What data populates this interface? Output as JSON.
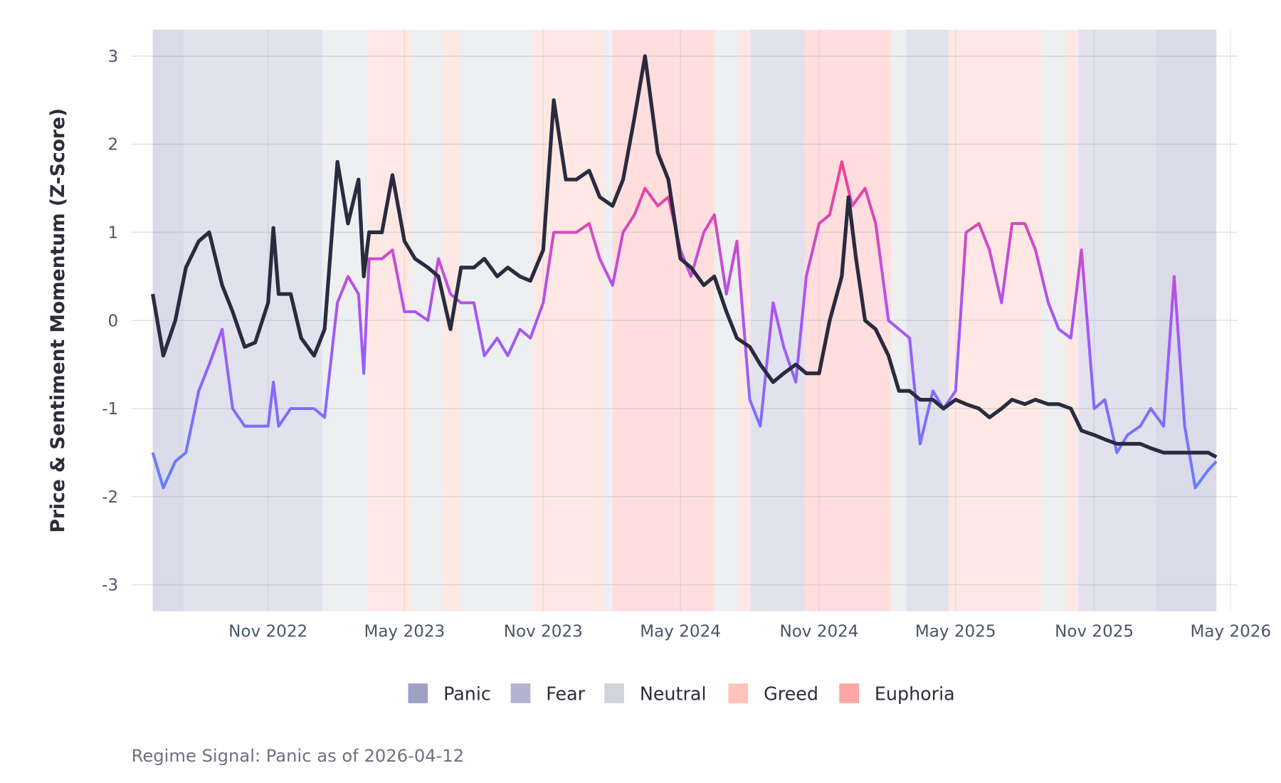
{
  "chart_data": {
    "type": "line",
    "ylabel": "Price & Sentiment Momentum (Z-Score)",
    "ylim": [
      -3.3,
      3.3
    ],
    "xlim": [
      "2022-06-01",
      "2026-05-10"
    ],
    "y_ticks": [
      "3",
      "2",
      "1",
      "0",
      "-1",
      "-2",
      "-3"
    ],
    "y_tick_values": [
      3,
      2,
      1,
      0,
      -1,
      -2,
      -3
    ],
    "x_ticks": [
      {
        "label": "Nov 2022",
        "date": "2022-11-01"
      },
      {
        "label": "May 2023",
        "date": "2023-05-01"
      },
      {
        "label": "Nov 2023",
        "date": "2023-11-01"
      },
      {
        "label": "May 2024",
        "date": "2024-05-01"
      },
      {
        "label": "Nov 2024",
        "date": "2024-11-01"
      },
      {
        "label": "May 2025",
        "date": "2025-05-01"
      },
      {
        "label": "Nov 2025",
        "date": "2025-11-01"
      },
      {
        "label": "May 2026",
        "date": "2026-05-01"
      }
    ],
    "grid": true,
    "legend_position": "bottom",
    "legend": [
      {
        "label": "Panic",
        "color": "#9f9fc6"
      },
      {
        "label": "Fear",
        "color": "#b3b3d1"
      },
      {
        "label": "Neutral",
        "color": "#d1d5db"
      },
      {
        "label": "Greed",
        "color": "#fec3b9"
      },
      {
        "label": "Euphoria",
        "color": "#fea7a5"
      }
    ],
    "regimes": [
      {
        "start": "2022-06-01",
        "end": "2022-07-12",
        "regime": "Panic"
      },
      {
        "start": "2022-07-12",
        "end": "2022-08-17",
        "regime": "Fear"
      },
      {
        "start": "2022-08-17",
        "end": "2023-01-12",
        "regime": "Fear"
      },
      {
        "start": "2023-01-12",
        "end": "2023-03-13",
        "regime": "Neutral"
      },
      {
        "start": "2023-03-13",
        "end": "2023-05-09",
        "regime": "Greed"
      },
      {
        "start": "2023-05-09",
        "end": "2023-06-21",
        "regime": "Neutral"
      },
      {
        "start": "2023-06-21",
        "end": "2023-07-13",
        "regime": "Greed"
      },
      {
        "start": "2023-07-13",
        "end": "2023-10-20",
        "regime": "Neutral"
      },
      {
        "start": "2023-10-20",
        "end": "2024-01-20",
        "regime": "Greed"
      },
      {
        "start": "2024-01-20",
        "end": "2024-02-01",
        "regime": "Neutral"
      },
      {
        "start": "2024-02-01",
        "end": "2024-06-15",
        "regime": "Euphoria"
      },
      {
        "start": "2024-06-15",
        "end": "2024-07-17",
        "regime": "Neutral"
      },
      {
        "start": "2024-07-17",
        "end": "2024-08-02",
        "regime": "Greed"
      },
      {
        "start": "2024-08-02",
        "end": "2024-10-13",
        "regime": "Fear"
      },
      {
        "start": "2024-10-13",
        "end": "2025-02-04",
        "regime": "Euphoria"
      },
      {
        "start": "2025-02-04",
        "end": "2025-02-25",
        "regime": "Neutral"
      },
      {
        "start": "2025-02-25",
        "end": "2025-04-22",
        "regime": "Fear"
      },
      {
        "start": "2025-04-22",
        "end": "2025-08-23",
        "regime": "Greed"
      },
      {
        "start": "2025-08-23",
        "end": "2025-09-24",
        "regime": "Neutral"
      },
      {
        "start": "2025-09-24",
        "end": "2025-10-11",
        "regime": "Greed"
      },
      {
        "start": "2025-10-11",
        "end": "2026-01-22",
        "regime": "Fear"
      },
      {
        "start": "2026-01-22",
        "end": "2026-04-12",
        "regime": "Panic"
      }
    ],
    "series": [
      {
        "color": "#292b3e",
        "points": [
          [
            "2022-06-01",
            0.3
          ],
          [
            "2022-06-15",
            -0.4
          ],
          [
            "2022-07-01",
            0.0
          ],
          [
            "2022-07-15",
            0.6
          ],
          [
            "2022-08-01",
            0.9
          ],
          [
            "2022-08-15",
            1.0
          ],
          [
            "2022-09-01",
            0.4
          ],
          [
            "2022-09-15",
            0.1
          ],
          [
            "2022-10-01",
            -0.3
          ],
          [
            "2022-10-15",
            -0.25
          ],
          [
            "2022-11-01",
            0.2
          ],
          [
            "2022-11-08",
            1.05
          ],
          [
            "2022-11-15",
            0.3
          ],
          [
            "2022-12-01",
            0.3
          ],
          [
            "2022-12-15",
            -0.2
          ],
          [
            "2023-01-01",
            -0.4
          ],
          [
            "2023-01-15",
            -0.1
          ],
          [
            "2023-02-01",
            1.8
          ],
          [
            "2023-02-15",
            1.1
          ],
          [
            "2023-03-01",
            1.6
          ],
          [
            "2023-03-08",
            0.5
          ],
          [
            "2023-03-15",
            1.0
          ],
          [
            "2023-04-01",
            1.0
          ],
          [
            "2023-04-15",
            1.65
          ],
          [
            "2023-05-01",
            0.9
          ],
          [
            "2023-05-15",
            0.7
          ],
          [
            "2023-06-01",
            0.6
          ],
          [
            "2023-06-15",
            0.5
          ],
          [
            "2023-07-01",
            -0.1
          ],
          [
            "2023-07-15",
            0.6
          ],
          [
            "2023-08-01",
            0.6
          ],
          [
            "2023-08-15",
            0.7
          ],
          [
            "2023-09-01",
            0.5
          ],
          [
            "2023-09-15",
            0.6
          ],
          [
            "2023-10-01",
            0.5
          ],
          [
            "2023-10-15",
            0.45
          ],
          [
            "2023-11-01",
            0.8
          ],
          [
            "2023-11-15",
            2.5
          ],
          [
            "2023-12-01",
            1.6
          ],
          [
            "2023-12-15",
            1.6
          ],
          [
            "2024-01-01",
            1.7
          ],
          [
            "2024-01-15",
            1.4
          ],
          [
            "2024-02-01",
            1.3
          ],
          [
            "2024-02-15",
            1.6
          ],
          [
            "2024-03-01",
            2.3
          ],
          [
            "2024-03-15",
            3.0
          ],
          [
            "2024-04-01",
            1.9
          ],
          [
            "2024-04-15",
            1.6
          ],
          [
            "2024-05-01",
            0.7
          ],
          [
            "2024-05-15",
            0.6
          ],
          [
            "2024-06-01",
            0.4
          ],
          [
            "2024-06-15",
            0.5
          ],
          [
            "2024-07-01",
            0.1
          ],
          [
            "2024-07-15",
            -0.2
          ],
          [
            "2024-08-01",
            -0.3
          ],
          [
            "2024-08-15",
            -0.5
          ],
          [
            "2024-09-01",
            -0.7
          ],
          [
            "2024-09-15",
            -0.6
          ],
          [
            "2024-10-01",
            -0.5
          ],
          [
            "2024-10-15",
            -0.6
          ],
          [
            "2024-11-01",
            -0.6
          ],
          [
            "2024-11-15",
            0.0
          ],
          [
            "2024-12-01",
            0.5
          ],
          [
            "2024-12-10",
            1.4
          ],
          [
            "2024-12-20",
            0.7
          ],
          [
            "2025-01-01",
            0.0
          ],
          [
            "2025-01-15",
            -0.1
          ],
          [
            "2025-02-01",
            -0.4
          ],
          [
            "2025-02-15",
            -0.8
          ],
          [
            "2025-03-01",
            -0.8
          ],
          [
            "2025-03-15",
            -0.9
          ],
          [
            "2025-04-01",
            -0.9
          ],
          [
            "2025-04-15",
            -1.0
          ],
          [
            "2025-05-01",
            -0.9
          ],
          [
            "2025-05-15",
            -0.95
          ],
          [
            "2025-06-01",
            -1.0
          ],
          [
            "2025-06-15",
            -1.1
          ],
          [
            "2025-07-01",
            -1.0
          ],
          [
            "2025-07-15",
            -0.9
          ],
          [
            "2025-08-01",
            -0.95
          ],
          [
            "2025-08-15",
            -0.9
          ],
          [
            "2025-09-01",
            -0.95
          ],
          [
            "2025-09-15",
            -0.95
          ],
          [
            "2025-10-01",
            -1.0
          ],
          [
            "2025-10-15",
            -1.25
          ],
          [
            "2025-11-01",
            -1.3
          ],
          [
            "2025-11-15",
            -1.35
          ],
          [
            "2025-12-01",
            -1.4
          ],
          [
            "2025-12-15",
            -1.4
          ],
          [
            "2026-01-01",
            -1.4
          ],
          [
            "2026-01-15",
            -1.45
          ],
          [
            "2026-02-01",
            -1.5
          ],
          [
            "2026-02-15",
            -1.5
          ],
          [
            "2026-03-01",
            -1.5
          ],
          [
            "2026-03-15",
            -1.5
          ],
          [
            "2026-04-01",
            -1.5
          ],
          [
            "2026-04-12",
            -1.55
          ]
        ]
      },
      {
        "color_scale": [
          "#5b83ff",
          "#a855f7",
          "#ff3d8b"
        ],
        "points": [
          [
            "2022-06-01",
            -1.5
          ],
          [
            "2022-06-15",
            -1.9
          ],
          [
            "2022-07-01",
            -1.6
          ],
          [
            "2022-07-15",
            -1.5
          ],
          [
            "2022-08-01",
            -0.8
          ],
          [
            "2022-08-15",
            -0.5
          ],
          [
            "2022-09-01",
            -0.1
          ],
          [
            "2022-09-15",
            -1.0
          ],
          [
            "2022-10-01",
            -1.2
          ],
          [
            "2022-10-15",
            -1.2
          ],
          [
            "2022-11-01",
            -1.2
          ],
          [
            "2022-11-08",
            -0.7
          ],
          [
            "2022-11-15",
            -1.2
          ],
          [
            "2022-12-01",
            -1.0
          ],
          [
            "2022-12-15",
            -1.0
          ],
          [
            "2023-01-01",
            -1.0
          ],
          [
            "2023-01-15",
            -1.1
          ],
          [
            "2023-02-01",
            0.2
          ],
          [
            "2023-02-15",
            0.5
          ],
          [
            "2023-03-01",
            0.3
          ],
          [
            "2023-03-08",
            -0.6
          ],
          [
            "2023-03-15",
            0.7
          ],
          [
            "2023-04-01",
            0.7
          ],
          [
            "2023-04-15",
            0.8
          ],
          [
            "2023-05-01",
            0.1
          ],
          [
            "2023-05-15",
            0.1
          ],
          [
            "2023-06-01",
            0.0
          ],
          [
            "2023-06-15",
            0.7
          ],
          [
            "2023-07-01",
            0.3
          ],
          [
            "2023-07-15",
            0.2
          ],
          [
            "2023-08-01",
            0.2
          ],
          [
            "2023-08-15",
            -0.4
          ],
          [
            "2023-09-01",
            -0.2
          ],
          [
            "2023-09-15",
            -0.4
          ],
          [
            "2023-10-01",
            -0.1
          ],
          [
            "2023-10-15",
            -0.2
          ],
          [
            "2023-11-01",
            0.2
          ],
          [
            "2023-11-15",
            1.0
          ],
          [
            "2023-12-01",
            1.0
          ],
          [
            "2023-12-15",
            1.0
          ],
          [
            "2024-01-01",
            1.1
          ],
          [
            "2024-01-15",
            0.7
          ],
          [
            "2024-02-01",
            0.4
          ],
          [
            "2024-02-15",
            1.0
          ],
          [
            "2024-03-01",
            1.2
          ],
          [
            "2024-03-15",
            1.5
          ],
          [
            "2024-04-01",
            1.3
          ],
          [
            "2024-04-15",
            1.4
          ],
          [
            "2024-05-01",
            0.8
          ],
          [
            "2024-05-15",
            0.5
          ],
          [
            "2024-06-01",
            1.0
          ],
          [
            "2024-06-15",
            1.2
          ],
          [
            "2024-07-01",
            0.3
          ],
          [
            "2024-07-15",
            0.9
          ],
          [
            "2024-08-01",
            -0.9
          ],
          [
            "2024-08-15",
            -1.2
          ],
          [
            "2024-09-01",
            0.2
          ],
          [
            "2024-09-15",
            -0.3
          ],
          [
            "2024-10-01",
            -0.7
          ],
          [
            "2024-10-15",
            0.5
          ],
          [
            "2024-11-01",
            1.1
          ],
          [
            "2024-11-15",
            1.2
          ],
          [
            "2024-12-01",
            1.8
          ],
          [
            "2024-12-15",
            1.3
          ],
          [
            "2025-01-01",
            1.5
          ],
          [
            "2025-01-15",
            1.1
          ],
          [
            "2025-02-01",
            0.0
          ],
          [
            "2025-02-15",
            -0.1
          ],
          [
            "2025-03-01",
            -0.2
          ],
          [
            "2025-03-15",
            -1.4
          ],
          [
            "2025-04-01",
            -0.8
          ],
          [
            "2025-04-15",
            -1.0
          ],
          [
            "2025-05-01",
            -0.8
          ],
          [
            "2025-05-15",
            1.0
          ],
          [
            "2025-06-01",
            1.1
          ],
          [
            "2025-06-15",
            0.8
          ],
          [
            "2025-07-01",
            0.2
          ],
          [
            "2025-07-15",
            1.1
          ],
          [
            "2025-08-01",
            1.1
          ],
          [
            "2025-08-15",
            0.8
          ],
          [
            "2025-09-01",
            0.2
          ],
          [
            "2025-09-15",
            -0.1
          ],
          [
            "2025-10-01",
            -0.2
          ],
          [
            "2025-10-15",
            0.8
          ],
          [
            "2025-11-01",
            -1.0
          ],
          [
            "2025-11-15",
            -0.9
          ],
          [
            "2025-12-01",
            -1.5
          ],
          [
            "2025-12-15",
            -1.3
          ],
          [
            "2026-01-01",
            -1.2
          ],
          [
            "2026-01-15",
            -1.0
          ],
          [
            "2026-02-01",
            -1.2
          ],
          [
            "2026-02-15",
            0.5
          ],
          [
            "2026-03-01",
            -1.2
          ],
          [
            "2026-03-15",
            -1.9
          ],
          [
            "2026-04-01",
            -1.7
          ],
          [
            "2026-04-12",
            -1.6
          ]
        ]
      }
    ],
    "caption": "Regime Signal: Panic as of 2026-04-12"
  }
}
